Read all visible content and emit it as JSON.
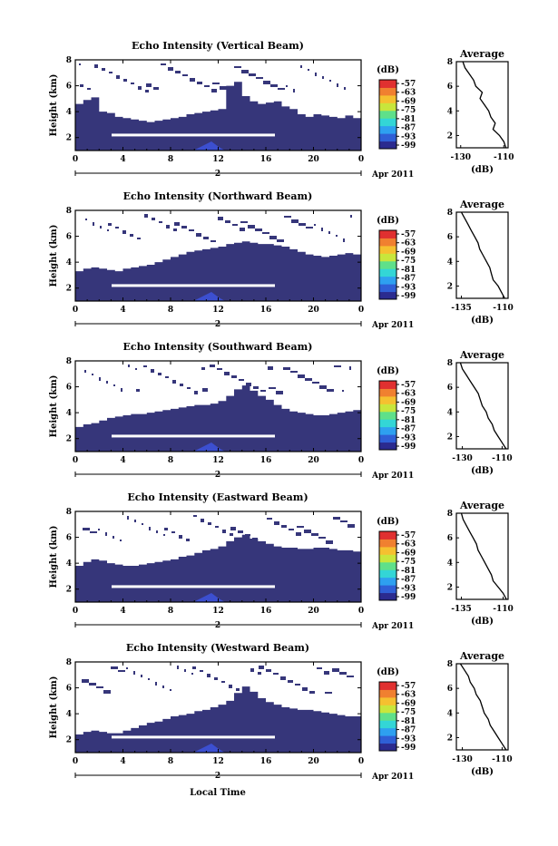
{
  "figure": {
    "xlabel": "Local Time",
    "date_label": "Apr 2011",
    "day_label": "2"
  },
  "chart_data": [
    {
      "type": "heatmap",
      "title": "Echo Intensity (Vertical Beam)",
      "ylabel": "Height (km)",
      "x_ticks": [
        "0",
        "4",
        "8",
        "12",
        "16",
        "20",
        "0"
      ],
      "x_range": [
        0,
        24
      ],
      "y_ticks": [
        "2",
        "4",
        "6",
        "8"
      ],
      "y_range": [
        1,
        8
      ],
      "colorbar": {
        "label": "(dB)",
        "ticks": [
          "-57",
          "-63",
          "-69",
          "-75",
          "-81",
          "-87",
          "-93",
          "-99"
        ]
      },
      "profile": {
        "title": "Average",
        "xlabel": "(dB)",
        "x_ticks": [
          "-130",
          "-110"
        ],
        "x_range": [
          -132,
          -108
        ],
        "heights": [
          1,
          1.5,
          2,
          2.5,
          3,
          3.5,
          4,
          4.5,
          5,
          5.5,
          6,
          6.5,
          7,
          7.5,
          8
        ],
        "values": [
          -109,
          -110,
          -112,
          -115,
          -114,
          -116,
          -117,
          -119,
          -121,
          -120,
          -123,
          -124,
          -126,
          -128,
          -129
        ]
      },
      "echo_top_km": [
        4.6,
        4.9,
        5.1,
        4.0,
        3.9,
        3.6,
        3.5,
        3.4,
        3.3,
        3.2,
        3.3,
        3.4,
        3.5,
        3.6,
        3.8,
        3.9,
        4.0,
        4.1,
        4.2,
        6.0,
        6.3,
        5.2,
        4.8,
        4.6,
        4.7,
        4.8,
        4.4,
        4.2,
        3.8,
        3.6,
        3.8,
        3.7,
        3.6,
        3.5,
        3.7,
        3.5
      ]
    },
    {
      "type": "heatmap",
      "title": "Echo Intensity (Northward Beam)",
      "ylabel": "Height (km)",
      "x_ticks": [
        "0",
        "4",
        "8",
        "12",
        "16",
        "20",
        "0"
      ],
      "x_range": [
        0,
        24
      ],
      "y_ticks": [
        "2",
        "4",
        "6",
        "8"
      ],
      "y_range": [
        1,
        8
      ],
      "colorbar": {
        "label": "(dB)",
        "ticks": [
          "-57",
          "-63",
          "-69",
          "-75",
          "-81",
          "-87",
          "-93",
          "-99"
        ]
      },
      "profile": {
        "title": "Average",
        "xlabel": "(dB)",
        "x_ticks": [
          "-135",
          "-110"
        ],
        "x_range": [
          -138,
          -107
        ],
        "heights": [
          1,
          1.5,
          2,
          2.5,
          3,
          3.5,
          4,
          4.5,
          5,
          5.5,
          6,
          6.5,
          7,
          7.5,
          8
        ],
        "values": [
          -109,
          -111,
          -113,
          -116,
          -117,
          -118,
          -120,
          -122,
          -124,
          -125,
          -127,
          -129,
          -131,
          -133,
          -135
        ]
      },
      "echo_top_km": [
        3.3,
        3.5,
        3.6,
        3.5,
        3.4,
        3.3,
        3.5,
        3.6,
        3.7,
        3.8,
        4.0,
        4.2,
        4.4,
        4.6,
        4.8,
        4.9,
        5.0,
        5.1,
        5.2,
        5.4,
        5.5,
        5.6,
        5.5,
        5.4,
        5.4,
        5.3,
        5.2,
        5.0,
        4.8,
        4.6,
        4.5,
        4.4,
        4.5,
        4.6,
        4.7,
        4.6
      ]
    },
    {
      "type": "heatmap",
      "title": "Echo Intensity (Southward Beam)",
      "ylabel": "Height (km)",
      "x_ticks": [
        "0",
        "4",
        "8",
        "12",
        "16",
        "20",
        "0"
      ],
      "x_range": [
        0,
        24
      ],
      "y_ticks": [
        "2",
        "4",
        "6",
        "8"
      ],
      "y_range": [
        1,
        8
      ],
      "colorbar": {
        "label": "(dB)",
        "ticks": [
          "-57",
          "-63",
          "-69",
          "-75",
          "-81",
          "-87",
          "-93",
          "-99"
        ]
      },
      "profile": {
        "title": "Average",
        "xlabel": "(dB)",
        "x_ticks": [
          "-130",
          "-110"
        ],
        "x_range": [
          -133,
          -107
        ],
        "heights": [
          1,
          1.5,
          2,
          2.5,
          3,
          3.5,
          4,
          4.5,
          5,
          5.5,
          6,
          6.5,
          7,
          7.5,
          8
        ],
        "values": [
          -108,
          -110,
          -112,
          -114,
          -115,
          -117,
          -118,
          -120,
          -121,
          -122,
          -124,
          -126,
          -128,
          -130,
          -131
        ]
      },
      "echo_top_km": [
        2.9,
        3.1,
        3.2,
        3.4,
        3.6,
        3.7,
        3.8,
        3.9,
        3.9,
        4.0,
        4.1,
        4.2,
        4.3,
        4.4,
        4.5,
        4.6,
        4.6,
        4.7,
        4.9,
        5.3,
        5.8,
        6.1,
        5.7,
        5.3,
        5.0,
        4.6,
        4.3,
        4.1,
        4.0,
        3.9,
        3.8,
        3.8,
        3.9,
        4.0,
        4.1,
        4.2
      ]
    },
    {
      "type": "heatmap",
      "title": "Echo Intensity (Eastward Beam)",
      "ylabel": "Height (km)",
      "x_ticks": [
        "0",
        "4",
        "8",
        "12",
        "16",
        "20",
        "0"
      ],
      "x_range": [
        0,
        24
      ],
      "y_ticks": [
        "2",
        "4",
        "6",
        "8"
      ],
      "y_range": [
        1,
        8
      ],
      "colorbar": {
        "label": "(dB)",
        "ticks": [
          "-57",
          "-63",
          "-69",
          "-75",
          "-81",
          "-87",
          "-93",
          "-99"
        ]
      },
      "profile": {
        "title": "Average",
        "xlabel": "(dB)",
        "x_ticks": [
          "-135",
          "-110"
        ],
        "x_range": [
          -138,
          -107
        ],
        "heights": [
          1,
          1.5,
          2,
          2.5,
          3,
          3.5,
          4,
          4.5,
          5,
          5.5,
          6,
          6.5,
          7,
          7.5,
          8
        ],
        "values": [
          -108,
          -110,
          -113,
          -116,
          -117,
          -119,
          -121,
          -123,
          -125,
          -126,
          -128,
          -130,
          -132,
          -134,
          -135
        ]
      },
      "echo_top_km": [
        3.8,
        4.1,
        4.3,
        4.2,
        4.0,
        3.9,
        3.8,
        3.8,
        3.9,
        4.0,
        4.1,
        4.2,
        4.3,
        4.5,
        4.6,
        4.8,
        5.0,
        5.1,
        5.3,
        5.7,
        6.0,
        6.2,
        5.9,
        5.7,
        5.5,
        5.3,
        5.2,
        5.2,
        5.1,
        5.1,
        5.2,
        5.2,
        5.1,
        5.0,
        5.0,
        4.9
      ]
    },
    {
      "type": "heatmap",
      "title": "Echo Intensity (Westward Beam)",
      "ylabel": "Height (km)",
      "x_ticks": [
        "0",
        "4",
        "8",
        "12",
        "16",
        "20",
        "0"
      ],
      "x_range": [
        0,
        24
      ],
      "y_ticks": [
        "2",
        "4",
        "6",
        "8"
      ],
      "y_range": [
        1,
        8
      ],
      "colorbar": {
        "label": "(dB)",
        "ticks": [
          "-57",
          "-63",
          "-69",
          "-75",
          "-81",
          "-87",
          "-93",
          "-99"
        ]
      },
      "profile": {
        "title": "Average",
        "xlabel": "(dB)",
        "x_ticks": [
          "-130",
          "-110"
        ],
        "x_range": [
          -133,
          -107
        ],
        "heights": [
          1,
          1.5,
          2,
          2.5,
          3,
          3.5,
          4,
          4.5,
          5,
          5.5,
          6,
          6.5,
          7,
          7.5,
          8
        ],
        "values": [
          -108,
          -110,
          -112,
          -114,
          -116,
          -117,
          -119,
          -120,
          -121,
          -123,
          -124,
          -126,
          -127,
          -129,
          -131
        ]
      },
      "echo_top_km": [
        2.4,
        2.6,
        2.7,
        2.6,
        2.5,
        2.5,
        2.7,
        2.9,
        3.1,
        3.3,
        3.4,
        3.6,
        3.8,
        3.9,
        4.0,
        4.2,
        4.3,
        4.5,
        4.7,
        5.0,
        5.6,
        6.1,
        5.7,
        5.2,
        4.9,
        4.7,
        4.5,
        4.4,
        4.3,
        4.3,
        4.2,
        4.1,
        4.0,
        3.9,
        3.8,
        3.8
      ]
    }
  ]
}
